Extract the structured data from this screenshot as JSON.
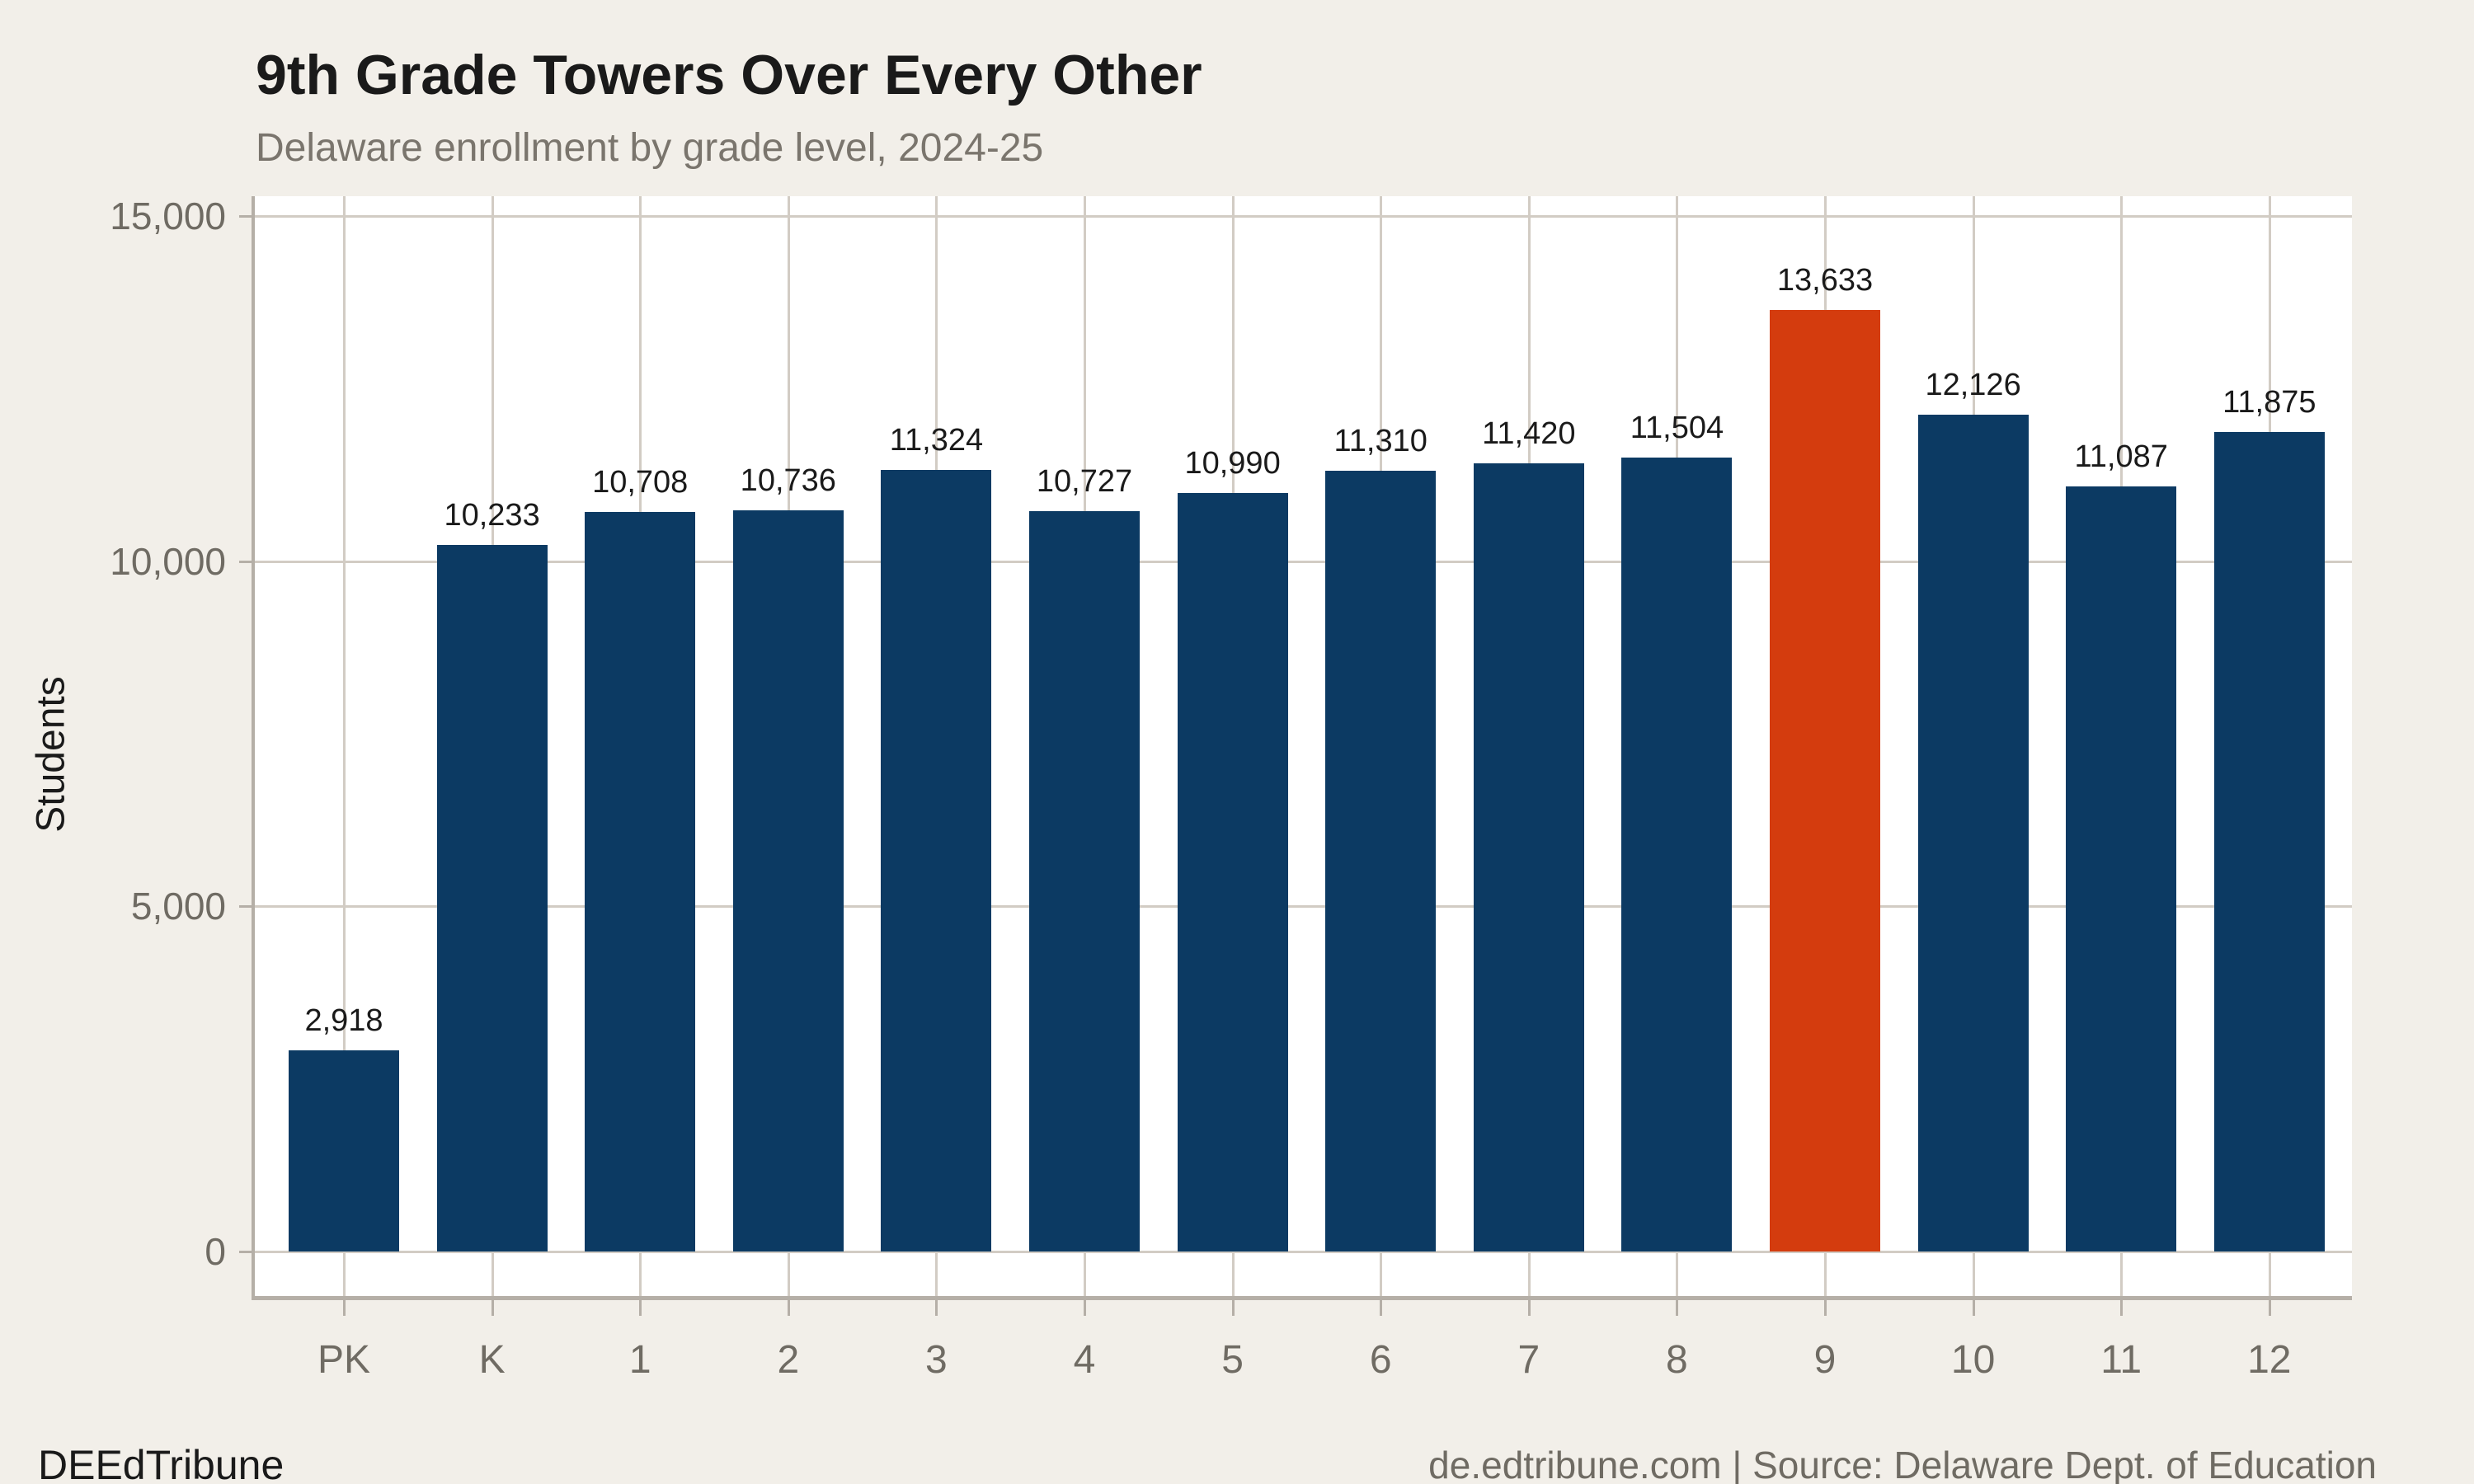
{
  "title": "9th Grade Towers Over Every Other",
  "subtitle": "Delaware enrollment by grade level, 2024-25",
  "footer": {
    "brand": "DEEdTribune",
    "source": "de.edtribune.com | Source: Delaware Dept. of Education"
  },
  "chart_data": {
    "type": "bar",
    "title": "9th Grade Towers Over Every Other",
    "subtitle": "Delaware enrollment by grade level, 2024-25",
    "xlabel": "",
    "ylabel": "Students",
    "categories": [
      "PK",
      "K",
      "1",
      "2",
      "3",
      "4",
      "5",
      "6",
      "7",
      "8",
      "9",
      "10",
      "11",
      "12"
    ],
    "values": [
      2918,
      10233,
      10708,
      10736,
      11324,
      10727,
      10990,
      11310,
      11420,
      11504,
      13633,
      12126,
      11087,
      11875
    ],
    "value_labels": [
      "2,918",
      "10,233",
      "10,708",
      "10,736",
      "11,324",
      "10,727",
      "10,990",
      "11,310",
      "11,420",
      "11,504",
      "13,633",
      "12,126",
      "11,087",
      "11,875"
    ],
    "highlight_category": "9",
    "highlight_index": 10,
    "ylim": [
      0,
      15000
    ],
    "yticks": [
      0,
      5000,
      10000,
      15000
    ],
    "ytick_labels": [
      "0",
      "5,000",
      "10,000",
      "15,000"
    ],
    "grid": true,
    "legend_position": "none",
    "colors": {
      "bar": "#0c3a63",
      "highlight": "#d43c0e",
      "background": "#f2efe9",
      "panel": "#ffffff",
      "gridline": "#d2ccc4",
      "axis": "#b5afa7",
      "text_dark": "#1a1a1a",
      "text_gray": "#6f6b63"
    }
  }
}
